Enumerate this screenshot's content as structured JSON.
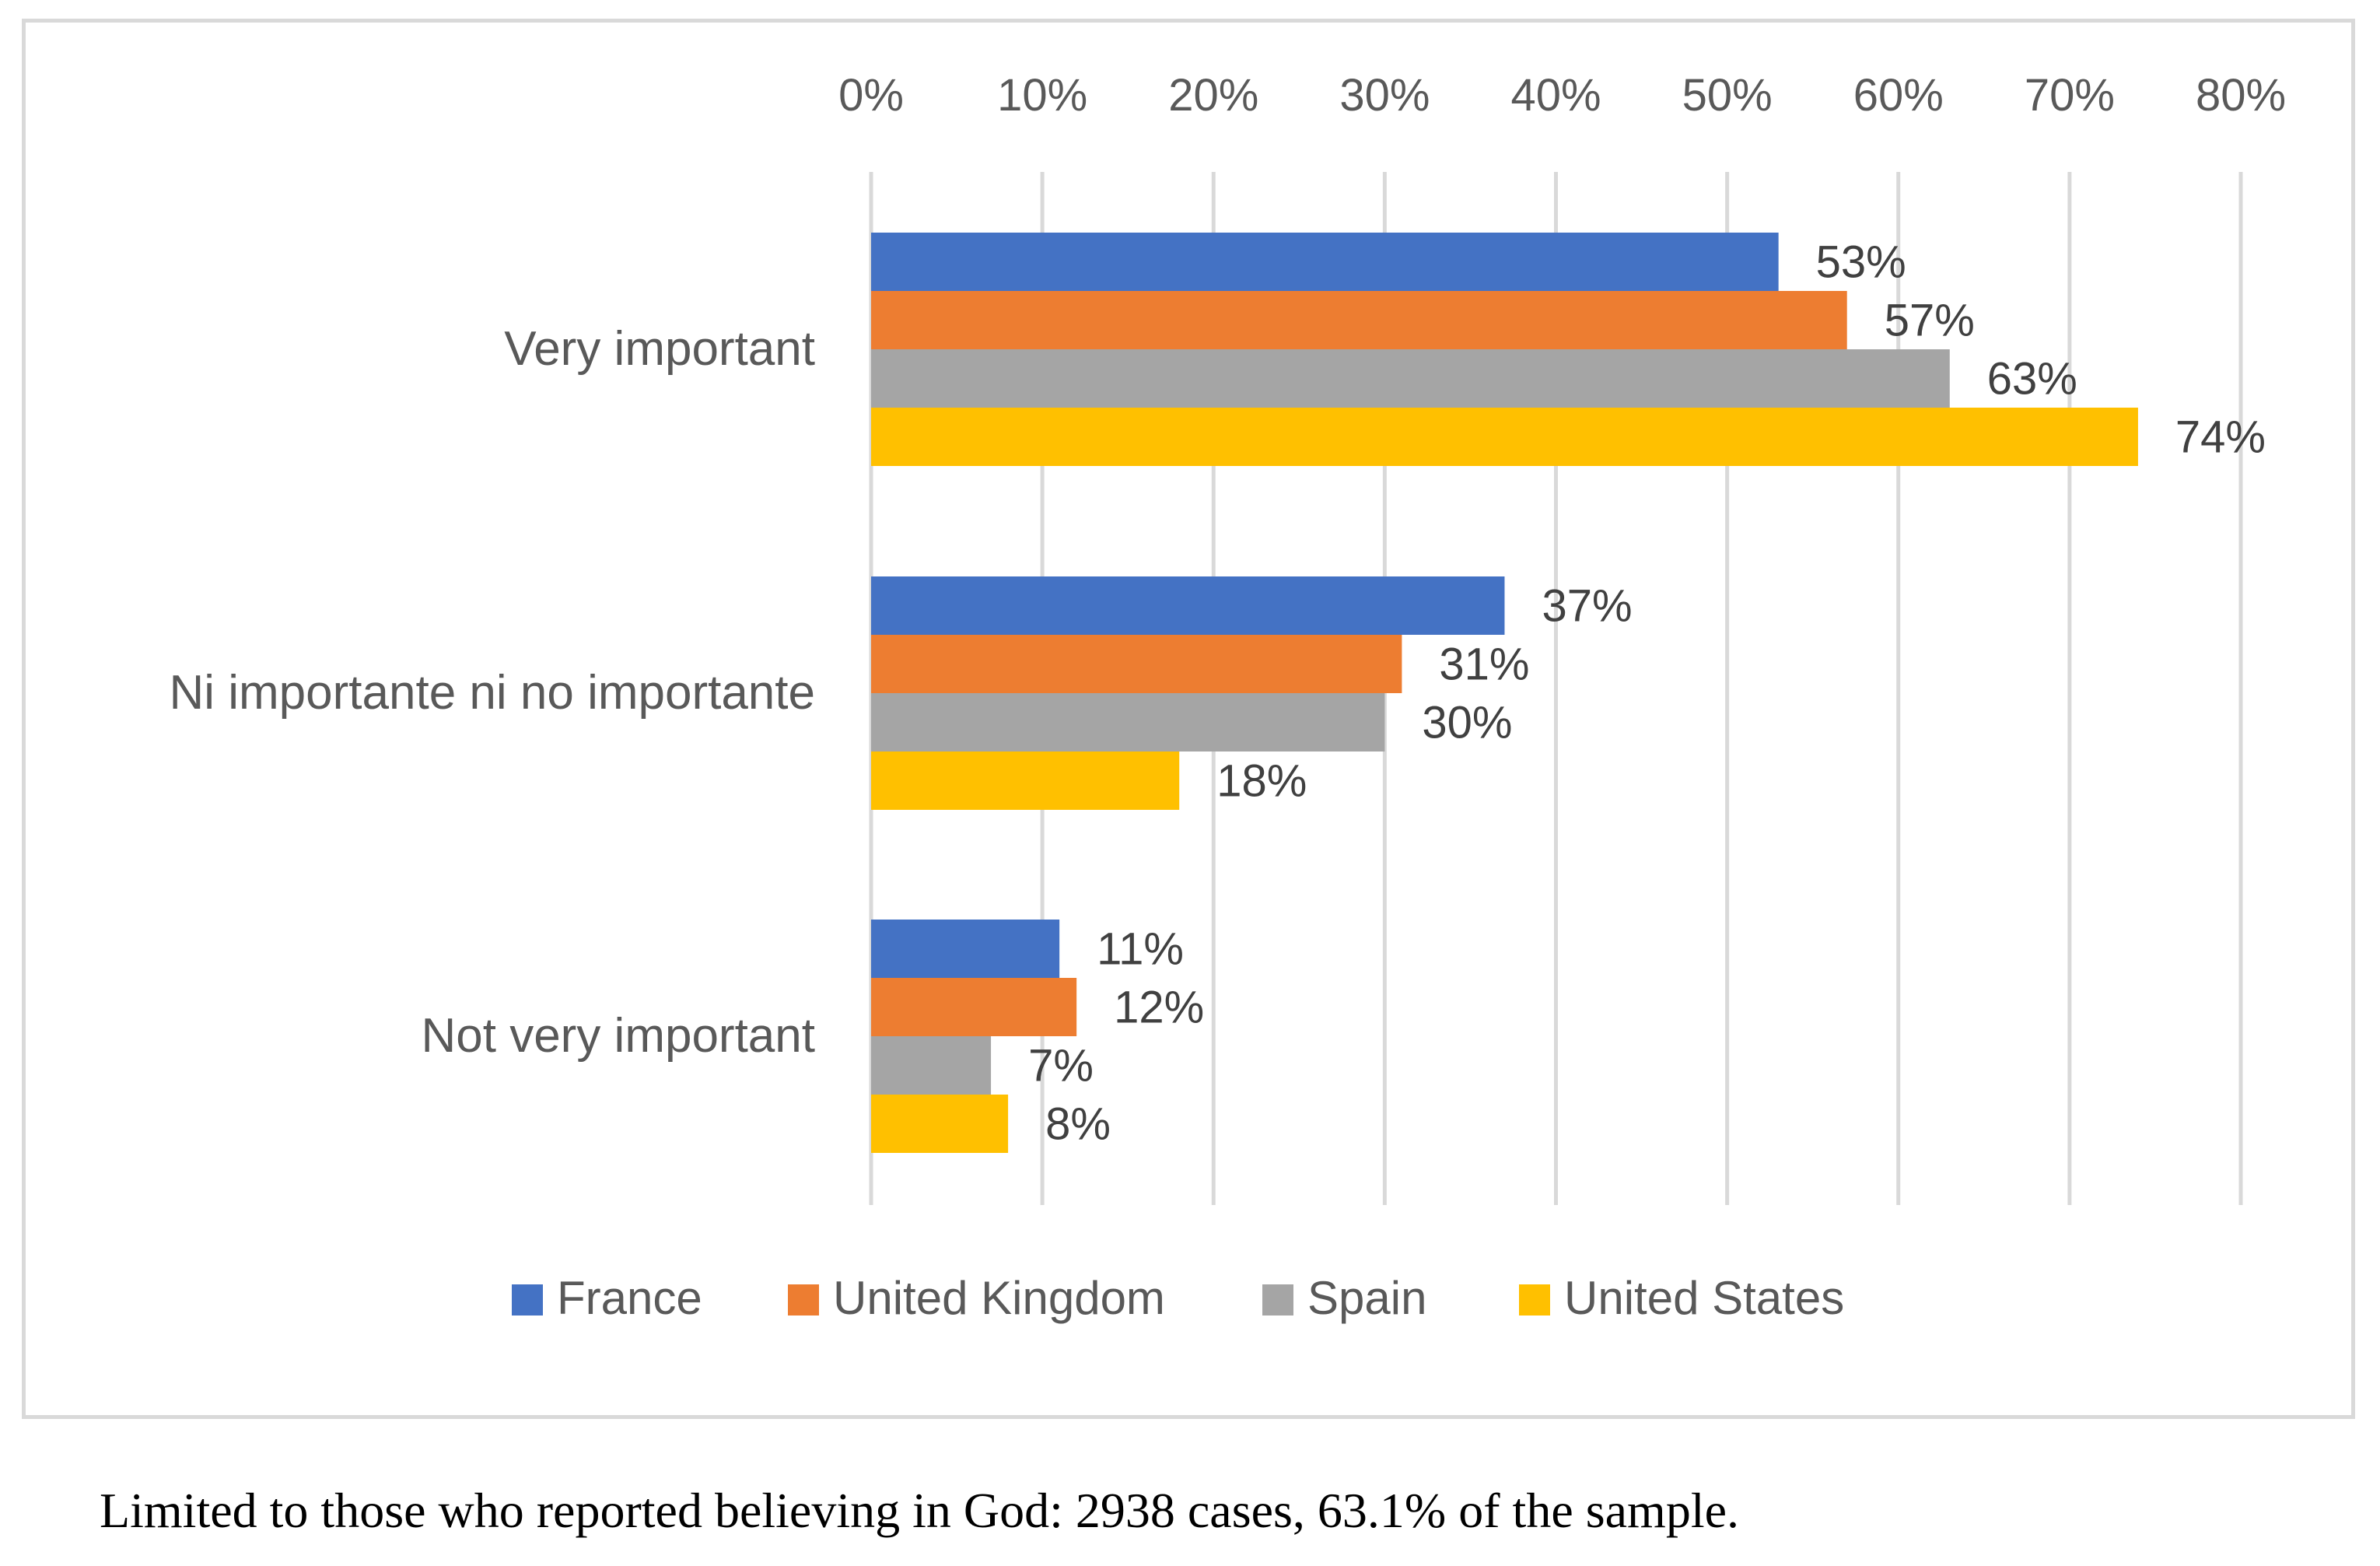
{
  "chart_data": {
    "type": "bar",
    "orientation": "horizontal",
    "title": "",
    "xlabel": "",
    "ylabel": "",
    "xlim": [
      0,
      80
    ],
    "x_ticks": [
      0,
      10,
      20,
      30,
      40,
      50,
      60,
      70,
      80
    ],
    "x_tick_labels": [
      "0%",
      "10%",
      "20%",
      "30%",
      "40%",
      "50%",
      "60%",
      "70%",
      "80%"
    ],
    "x_axis_position": "top",
    "grid": true,
    "legend_position": "bottom",
    "categories": [
      "Very important",
      "Ni importante ni no importante",
      "Not very important"
    ],
    "series": [
      {
        "name": "France",
        "color": "#4472c4",
        "values": [
          53,
          37,
          11
        ],
        "labels": [
          "53%",
          "37%",
          "11%"
        ]
      },
      {
        "name": "United Kingdom",
        "color": "#ed7d31",
        "values": [
          57,
          31,
          12
        ],
        "labels": [
          "57%",
          "31%",
          "12%"
        ]
      },
      {
        "name": "Spain",
        "color": "#a5a5a5",
        "values": [
          63,
          30,
          7
        ],
        "labels": [
          "63%",
          "30%",
          "7%"
        ]
      },
      {
        "name": "United States",
        "color": "#ffc000",
        "values": [
          74,
          18,
          8
        ],
        "labels": [
          "74%",
          "18%",
          "8%"
        ]
      }
    ]
  },
  "caption": "Limited to those who reported believing in God: 2938 cases, 63.1% of the sample."
}
